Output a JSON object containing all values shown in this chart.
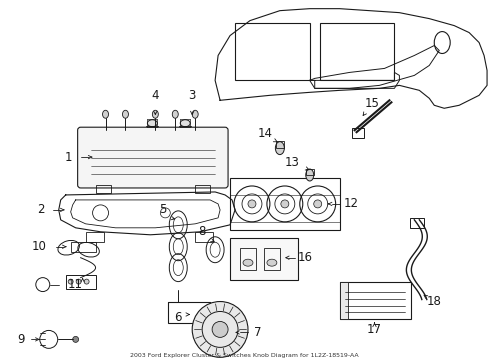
{
  "title": "2003 Ford Explorer Cluster & Switches Knob Diagram for 1L2Z-18519-AA",
  "bg_color": "#ffffff",
  "lc": "#1a1a1a",
  "fig_width": 4.89,
  "fig_height": 3.6,
  "dpi": 100
}
